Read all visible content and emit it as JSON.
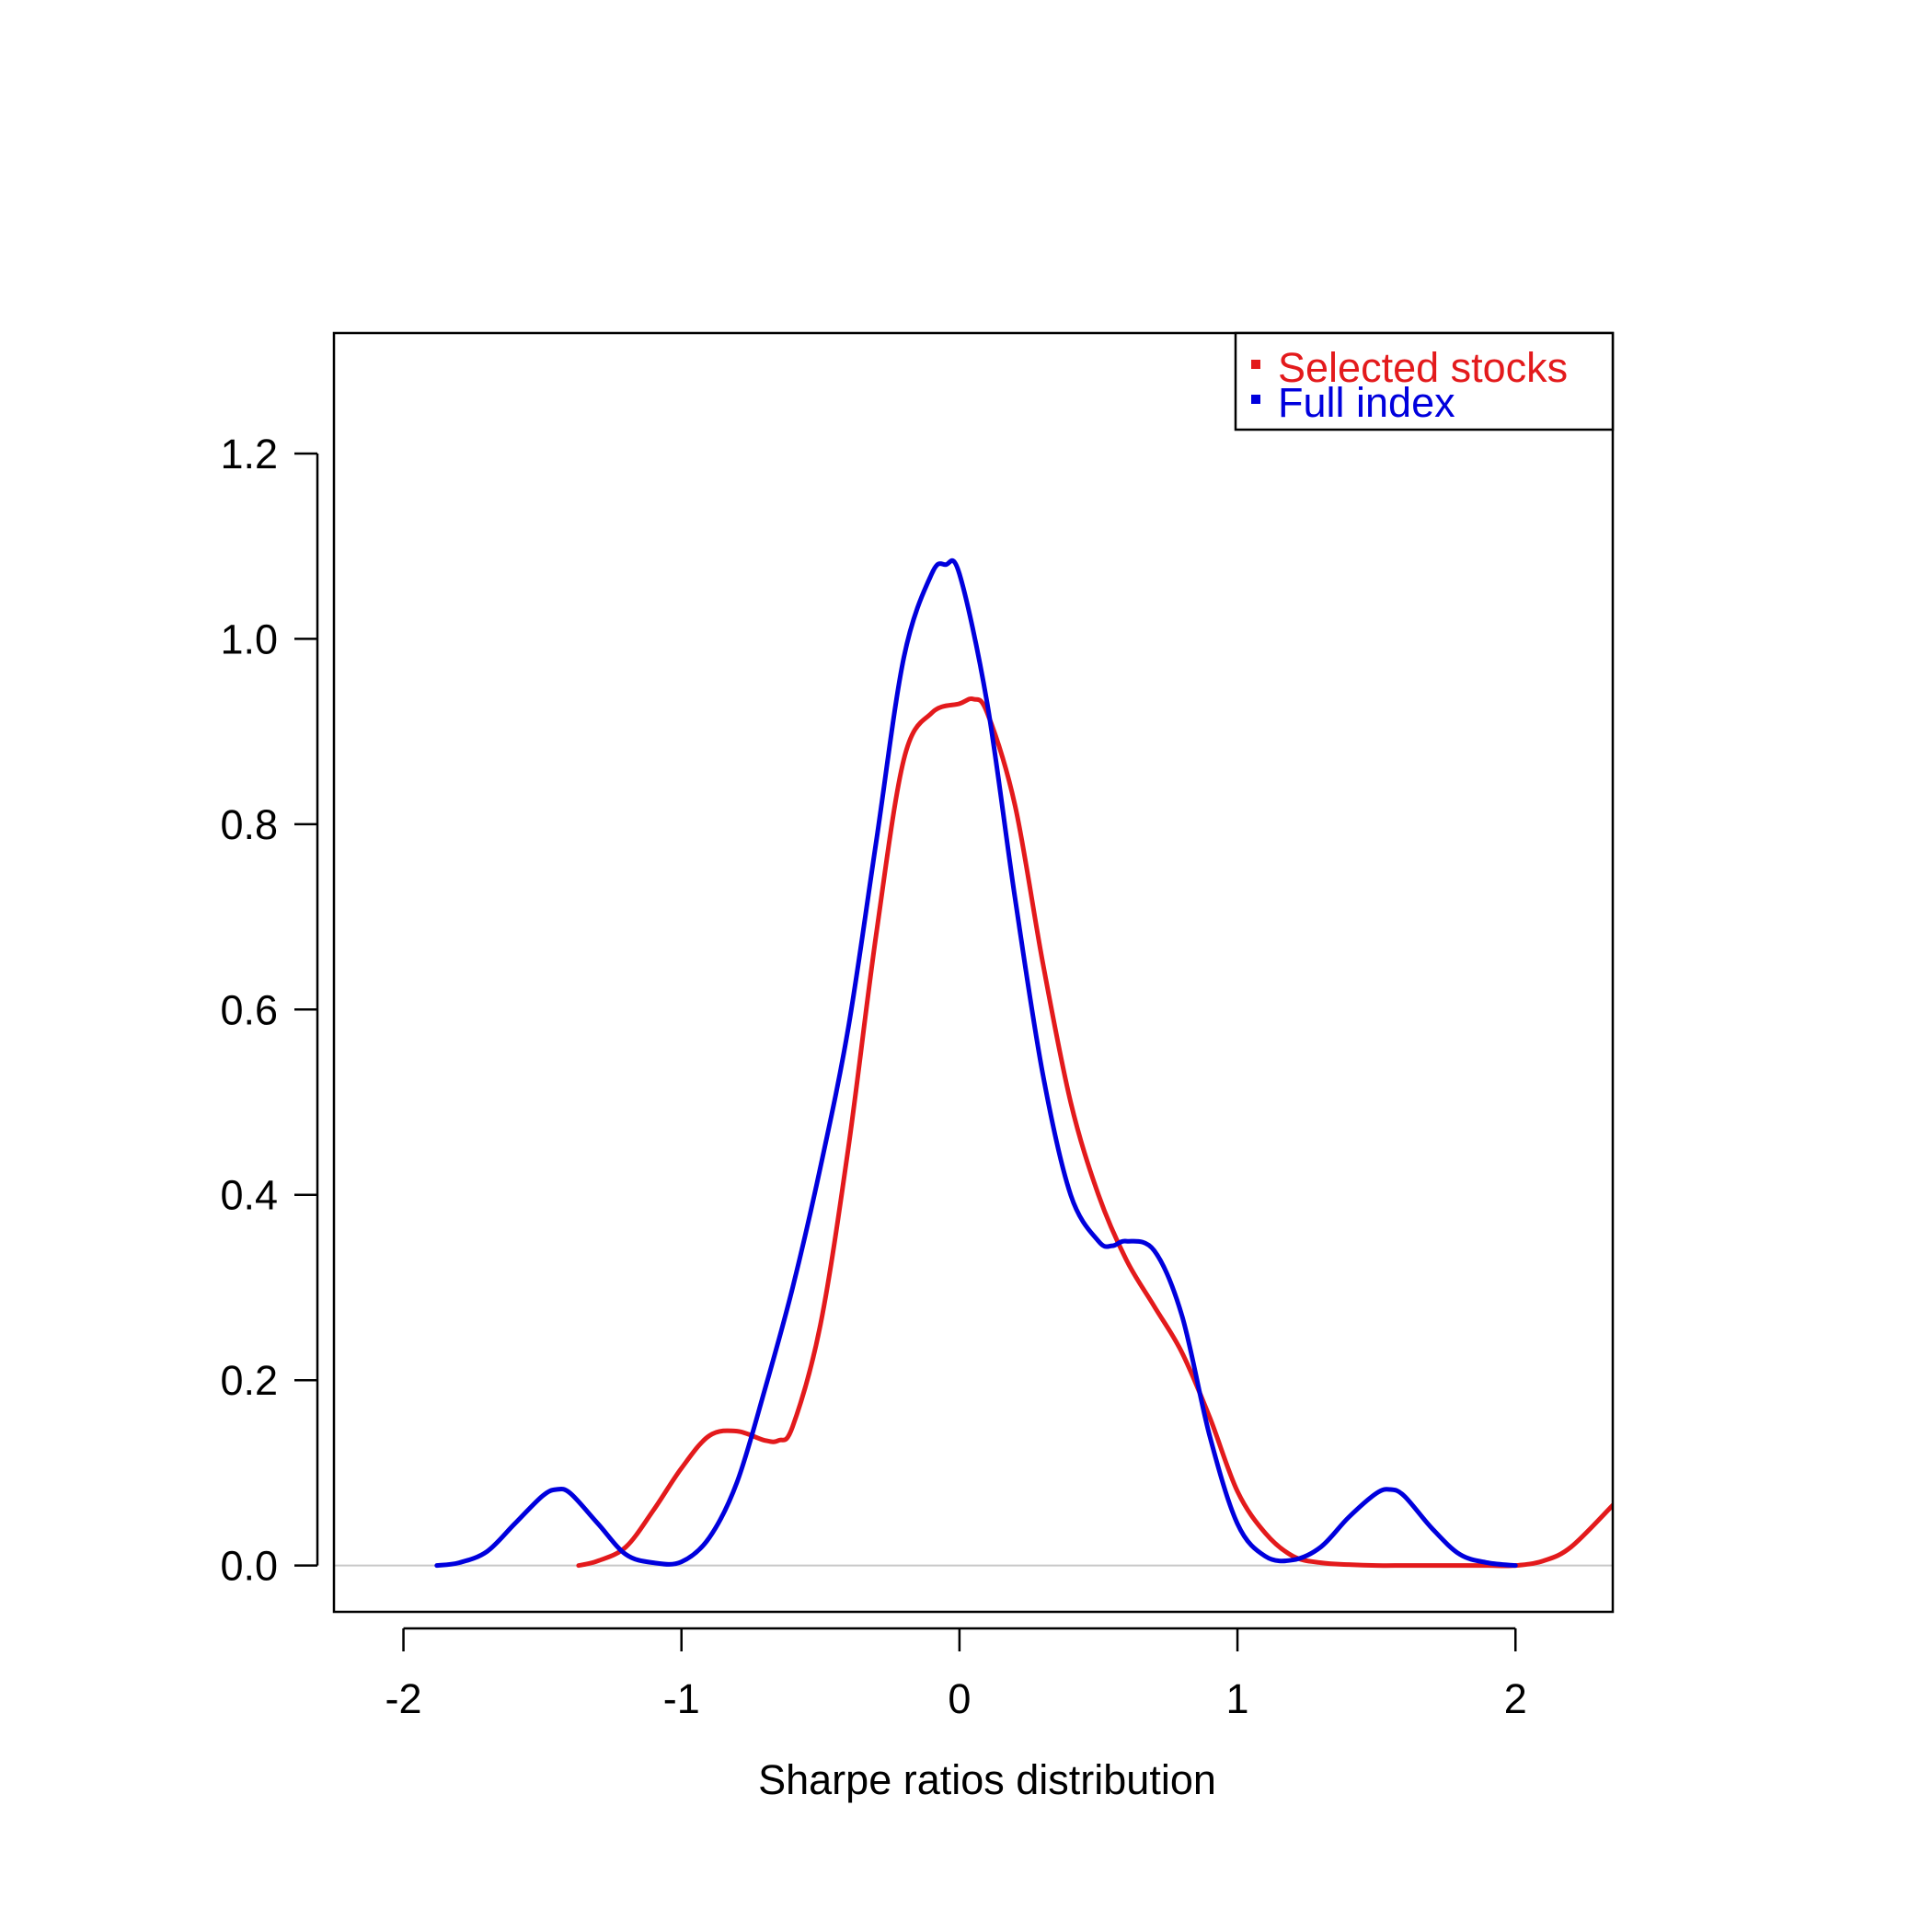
{
  "chart_data": {
    "type": "line",
    "title": "",
    "xlabel": "Sharpe ratios distribution",
    "ylabel": "",
    "xlim": [
      -2.25,
      2.35
    ],
    "ylim": [
      -0.05,
      1.33
    ],
    "xticks": [
      -2,
      -1,
      0,
      1,
      2
    ],
    "yticks": [
      0.0,
      0.2,
      0.4,
      0.6,
      0.8,
      1.0,
      1.2
    ],
    "xtick_labels": [
      "-2",
      "-1",
      "0",
      "1",
      "2"
    ],
    "ytick_labels": [
      "0.0",
      "0.2",
      "0.4",
      "0.6",
      "0.8",
      "1.0",
      "1.2"
    ],
    "grid": false,
    "baseline": 0,
    "legend_position": "top-right",
    "series": [
      {
        "name": "Selected stocks",
        "color": "#e31a1c",
        "x": [
          -1.37,
          -1.3,
          -1.2,
          -1.1,
          -1.0,
          -0.9,
          -0.8,
          -0.7,
          -0.65,
          -0.6,
          -0.5,
          -0.4,
          -0.3,
          -0.2,
          -0.1,
          0.0,
          0.05,
          0.1,
          0.2,
          0.3,
          0.4,
          0.5,
          0.6,
          0.7,
          0.8,
          0.9,
          1.0,
          1.1,
          1.2,
          1.3,
          1.4,
          1.5,
          1.6,
          1.7,
          1.8,
          1.9,
          2.0,
          2.1,
          2.2,
          2.35
        ],
        "y": [
          0.0,
          0.005,
          0.02,
          0.06,
          0.105,
          0.14,
          0.145,
          0.135,
          0.135,
          0.15,
          0.26,
          0.45,
          0.68,
          0.87,
          0.92,
          0.93,
          0.935,
          0.92,
          0.82,
          0.65,
          0.5,
          0.4,
          0.33,
          0.28,
          0.23,
          0.16,
          0.08,
          0.035,
          0.01,
          0.003,
          0.001,
          0.0,
          0.0,
          0.0,
          0.0,
          0.0,
          0.0,
          0.005,
          0.02,
          0.065
        ]
      },
      {
        "name": "Full index",
        "color": "#0000dd",
        "x": [
          -1.88,
          -1.8,
          -1.7,
          -1.6,
          -1.5,
          -1.45,
          -1.4,
          -1.3,
          -1.2,
          -1.1,
          -1.0,
          -0.9,
          -0.8,
          -0.7,
          -0.6,
          -0.5,
          -0.4,
          -0.3,
          -0.2,
          -0.1,
          -0.05,
          0.0,
          0.1,
          0.2,
          0.3,
          0.4,
          0.5,
          0.55,
          0.6,
          0.7,
          0.8,
          0.9,
          1.0,
          1.1,
          1.2,
          1.3,
          1.4,
          1.5,
          1.55,
          1.6,
          1.7,
          1.8,
          1.9,
          2.0
        ],
        "y": [
          0.0,
          0.003,
          0.015,
          0.045,
          0.075,
          0.082,
          0.078,
          0.045,
          0.012,
          0.003,
          0.004,
          0.03,
          0.09,
          0.19,
          0.3,
          0.43,
          0.58,
          0.78,
          0.98,
          1.07,
          1.08,
          1.07,
          0.93,
          0.72,
          0.53,
          0.4,
          0.35,
          0.345,
          0.35,
          0.34,
          0.27,
          0.14,
          0.045,
          0.01,
          0.006,
          0.02,
          0.052,
          0.078,
          0.082,
          0.075,
          0.04,
          0.012,
          0.003,
          0.0
        ]
      }
    ]
  }
}
